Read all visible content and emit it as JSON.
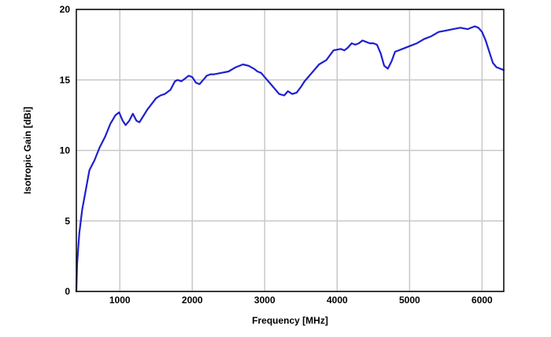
{
  "chart_data": {
    "type": "line",
    "xlabel": "Frequency [MHz]",
    "ylabel": "Isotropic Gain [dBi]",
    "xlim": [
      400,
      6300
    ],
    "ylim": [
      0,
      20
    ],
    "xticks": [
      1000,
      2000,
      3000,
      4000,
      5000,
      6000
    ],
    "yticks": [
      0,
      5,
      10,
      15,
      20
    ],
    "grid": true,
    "color": "#1f1fd0",
    "series": [
      {
        "x": [
          400,
          410,
          440,
          480,
          530,
          580,
          650,
          720,
          800,
          870,
          940,
          990,
          1040,
          1080,
          1130,
          1180,
          1230,
          1270,
          1320,
          1380,
          1440,
          1500,
          1560,
          1620,
          1700,
          1760,
          1800,
          1850,
          1900,
          1950,
          2000,
          2050,
          2100,
          2150,
          2200,
          2250,
          2300,
          2400,
          2500,
          2600,
          2700,
          2780,
          2850,
          2900,
          2950,
          3000,
          3100,
          3200,
          3270,
          3320,
          3380,
          3440,
          3500,
          3550,
          3650,
          3750,
          3850,
          3950,
          4050,
          4100,
          4150,
          4200,
          4250,
          4300,
          4350,
          4400,
          4450,
          4500,
          4550,
          4600,
          4650,
          4700,
          4750,
          4800,
          4850,
          4900,
          5000,
          5100,
          5200,
          5300,
          5400,
          5500,
          5600,
          5700,
          5800,
          5900,
          5950,
          6000,
          6050,
          6100,
          6150,
          6200,
          6250,
          6300
        ],
        "y": [
          0,
          1.9,
          4.1,
          5.8,
          7.2,
          8.6,
          9.3,
          10.2,
          11.0,
          11.9,
          12.5,
          12.7,
          12.1,
          11.8,
          12.1,
          12.6,
          12.1,
          12.0,
          12.4,
          12.9,
          13.3,
          13.7,
          13.9,
          14.0,
          14.3,
          14.9,
          15.0,
          14.9,
          15.1,
          15.3,
          15.2,
          14.8,
          14.7,
          15.0,
          15.3,
          15.4,
          15.4,
          15.5,
          15.6,
          15.9,
          16.1,
          16.0,
          15.8,
          15.6,
          15.5,
          15.2,
          14.6,
          14.0,
          13.9,
          14.2,
          14.0,
          14.1,
          14.5,
          14.9,
          15.5,
          16.1,
          16.4,
          17.1,
          17.2,
          17.1,
          17.3,
          17.6,
          17.5,
          17.6,
          17.8,
          17.7,
          17.6,
          17.6,
          17.5,
          16.9,
          16.0,
          15.8,
          16.3,
          17.0,
          17.1,
          17.2,
          17.4,
          17.6,
          17.9,
          18.1,
          18.4,
          18.5,
          18.6,
          18.7,
          18.6,
          18.8,
          18.7,
          18.4,
          17.8,
          17.0,
          16.2,
          15.9,
          15.8,
          15.7
        ]
      }
    ]
  }
}
